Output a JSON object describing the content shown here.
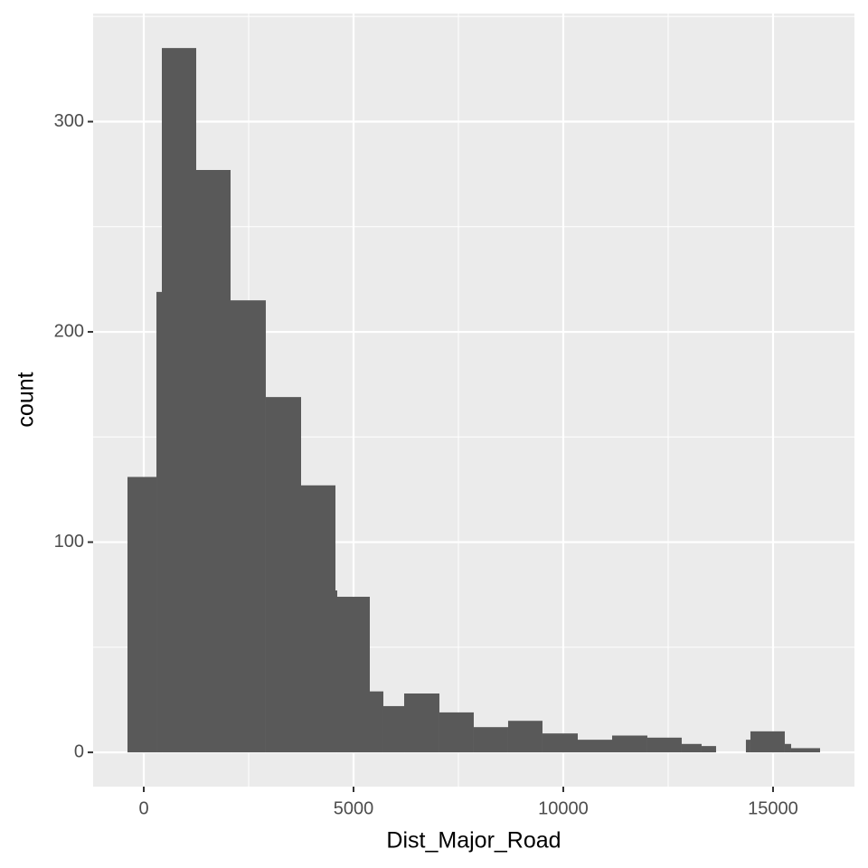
{
  "chart_data": {
    "type": "histogram",
    "x_label": "Dist_Major_Road",
    "y_label": "count",
    "bins": [
      -388,
      302,
      431,
      1250,
      2069,
      2909,
      3750,
      4569,
      4612,
      5388,
      5711,
      6207,
      7047,
      7866,
      8685,
      9504,
      10345,
      11164,
      12004,
      12823,
      13297,
      13642,
      14353,
      14461,
      15280,
      15431,
      16121
    ],
    "values": [
      131,
      219,
      335,
      277,
      215,
      169,
      127,
      77,
      74,
      29,
      22,
      28,
      19,
      12,
      15,
      9,
      6,
      8,
      7,
      4,
      3,
      0,
      6,
      10,
      4,
      2
    ],
    "color": "#595959",
    "xlim": [
      -1207,
      16940
    ],
    "ylim": [
      -16.3,
      351.4
    ],
    "xticks": [
      0,
      5000,
      10000,
      15000
    ],
    "yticks": [
      0,
      100,
      200,
      300
    ],
    "grid": true
  }
}
